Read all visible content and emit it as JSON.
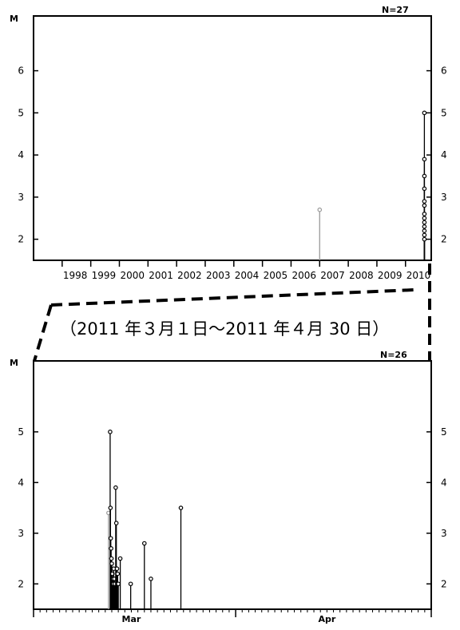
{
  "chart_data": [
    {
      "type": "scatter",
      "style": "stem",
      "ylabel": "M",
      "ylim": [
        1.5,
        7.3
      ],
      "yticks": [
        2,
        3,
        4,
        5,
        6
      ],
      "xlim": [
        1997.0,
        2010.9
      ],
      "xtick_labels": [
        "1998",
        "1999",
        "2000",
        "2001",
        "2002",
        "2003",
        "2004",
        "2005",
        "2006",
        "2007",
        "2008",
        "2009",
        "2010"
      ],
      "xtick_positions": [
        1998,
        1999,
        2000,
        2001,
        2002,
        2003,
        2004,
        2005,
        2006,
        2007,
        2008,
        2009,
        2010
      ],
      "count_label": "N=27",
      "grey_series": {
        "color": "#999999",
        "x": [
          2007.0
        ],
        "y": [
          2.7
        ]
      },
      "black_series": {
        "color": "#000000",
        "x": [
          2010.66,
          2010.66,
          2010.66,
          2010.66,
          2010.66,
          2010.66,
          2010.66,
          2010.66,
          2010.66,
          2010.66,
          2010.66,
          2010.66,
          2010.66
        ],
        "y": [
          5.0,
          3.9,
          3.5,
          3.2,
          2.9,
          2.8,
          2.6,
          2.5,
          2.4,
          2.3,
          2.2,
          2.1,
          2.0
        ]
      }
    },
    {
      "type": "scatter",
      "style": "stem",
      "ylabel": "M",
      "ylim": [
        1.5,
        6.4
      ],
      "yticks": [
        2,
        3,
        4,
        5
      ],
      "xlim": [
        0,
        61
      ],
      "xtick_labels": [
        "Mar",
        "Apr"
      ],
      "xtick_label_positions": [
        15,
        45
      ],
      "month_boundaries": [
        0,
        31,
        61
      ],
      "count_label": "N=26",
      "grey_series": {
        "color": "#999999",
        "x": [
          11.5
        ],
        "y": [
          3.4
        ]
      },
      "black_series": {
        "color": "#000000",
        "x": [
          11.75,
          11.8,
          11.85,
          11.9,
          11.95,
          12.0,
          12.1,
          12.2,
          12.25,
          12.3,
          12.4,
          12.5,
          12.6,
          12.7,
          12.8,
          12.9,
          13.0,
          13.3,
          14.9,
          17.0,
          18.0,
          22.6
        ],
        "y": [
          5.0,
          3.5,
          2.9,
          2.7,
          2.5,
          2.4,
          2.2,
          2.1,
          2.0,
          2.3,
          2.1,
          2.0,
          3.9,
          3.2,
          2.3,
          2.2,
          2.0,
          2.5,
          2.0,
          2.8,
          2.1,
          3.5
        ]
      }
    }
  ],
  "caption": "（2011 年３月１日～2011 年４月 30 日）"
}
